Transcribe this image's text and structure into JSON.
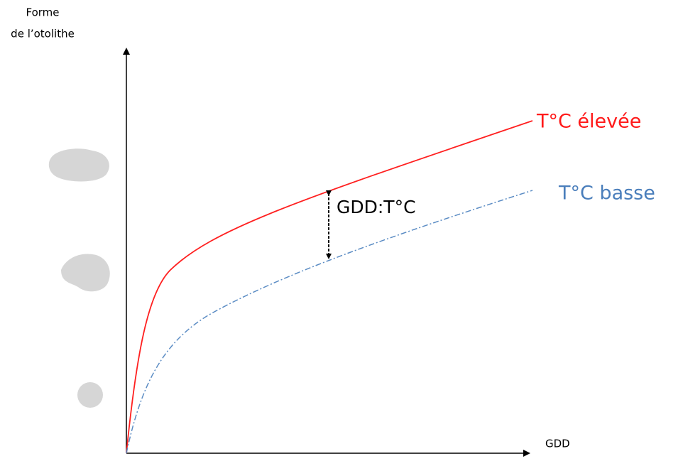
{
  "y_axis_label": [
    "Forme",
    "de l’otolithe"
  ],
  "x_axis_label": "GDD",
  "curves": [
    {
      "label": "T°C élevée"
    },
    {
      "label": "T°C basse"
    }
  ],
  "annotation": "GDD:T°C"
}
